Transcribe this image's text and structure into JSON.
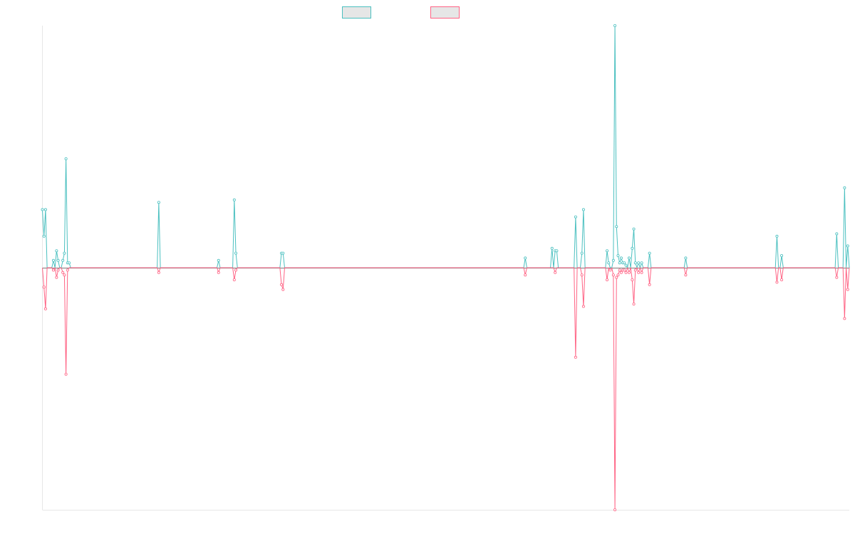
{
  "chart_data": {
    "type": "line",
    "title": "",
    "xlabel": "",
    "ylabel": "",
    "ylim": [
      -1,
      1
    ],
    "grid": false,
    "legend_position": "top-center",
    "series": [
      {
        "color": "#4bc0c0",
        "fill": "#e6e6e6",
        "values": [
          0.24,
          0.13,
          0.24,
          0,
          0,
          0,
          0,
          0.03,
          0,
          0.07,
          0.03,
          0,
          0,
          0.03,
          0.06,
          0.45,
          0.02,
          0.02,
          0,
          0,
          0,
          0,
          0,
          0,
          0,
          0,
          0,
          0,
          0,
          0,
          0,
          0,
          0,
          0,
          0,
          0,
          0,
          0,
          0,
          0,
          0,
          0,
          0,
          0,
          0,
          0,
          0,
          0,
          0,
          0,
          0,
          0,
          0,
          0,
          0,
          0,
          0,
          0,
          0,
          0,
          0,
          0,
          0,
          0,
          0,
          0,
          0,
          0,
          0,
          0,
          0,
          0,
          0,
          0,
          0.27,
          0,
          0,
          0,
          0,
          0,
          0,
          0,
          0,
          0,
          0,
          0,
          0,
          0,
          0,
          0,
          0,
          0,
          0,
          0,
          0,
          0,
          0,
          0,
          0,
          0,
          0,
          0,
          0,
          0,
          0,
          0,
          0,
          0,
          0,
          0,
          0,
          0,
          0.03,
          0,
          0,
          0,
          0,
          0,
          0,
          0,
          0,
          0,
          0.28,
          0.06,
          0,
          0,
          0,
          0,
          0,
          0,
          0,
          0,
          0,
          0,
          0,
          0,
          0,
          0,
          0,
          0,
          0,
          0,
          0,
          0,
          0,
          0,
          0,
          0,
          0,
          0,
          0,
          0,
          0.06,
          0.06,
          0,
          0,
          0,
          0,
          0,
          0,
          0,
          0,
          0,
          0,
          0,
          0,
          0,
          0,
          0,
          0,
          0,
          0,
          0,
          0,
          0,
          0,
          0,
          0,
          0,
          0,
          0,
          0,
          0,
          0,
          0,
          0,
          0,
          0,
          0,
          0,
          0,
          0,
          0,
          0,
          0,
          0,
          0,
          0,
          0,
          0,
          0,
          0,
          0,
          0,
          0,
          0,
          0,
          0,
          0,
          0,
          0,
          0,
          0,
          0,
          0,
          0,
          0,
          0,
          0,
          0,
          0,
          0,
          0,
          0,
          0,
          0,
          0,
          0,
          0,
          0,
          0,
          0,
          0,
          0,
          0,
          0,
          0,
          0,
          0,
          0,
          0,
          0,
          0,
          0,
          0,
          0,
          0,
          0,
          0,
          0,
          0,
          0,
          0,
          0,
          0,
          0,
          0,
          0,
          0,
          0,
          0,
          0,
          0,
          0,
          0,
          0,
          0,
          0,
          0,
          0,
          0,
          0,
          0,
          0,
          0,
          0,
          0,
          0,
          0,
          0,
          0,
          0,
          0,
          0,
          0,
          0,
          0,
          0,
          0,
          0,
          0,
          0,
          0,
          0,
          0,
          0,
          0,
          0,
          0,
          0,
          0,
          0,
          0,
          0,
          0,
          0,
          0,
          0.04,
          0,
          0,
          0,
          0,
          0,
          0,
          0,
          0,
          0,
          0,
          0,
          0,
          0,
          0,
          0,
          0,
          0.08,
          0,
          0.07,
          0.07,
          0,
          0,
          0,
          0,
          0,
          0,
          0,
          0,
          0,
          0,
          0,
          0.21,
          0,
          0,
          0,
          0.06,
          0.24,
          0,
          0,
          0,
          0,
          0,
          0,
          0,
          0,
          0,
          0,
          0,
          0,
          0,
          0,
          0.07,
          0.02,
          0,
          0,
          0.03,
          1.0,
          0.17,
          0.05,
          0.02,
          0.04,
          0.02,
          0.02,
          0.01,
          0,
          0.04,
          0,
          0.08,
          0.16,
          0.02,
          0,
          0.02,
          0,
          0.02,
          0,
          0,
          0,
          0,
          0.06,
          0,
          0,
          0,
          0,
          0,
          0,
          0,
          0,
          0,
          0,
          0,
          0,
          0,
          0,
          0,
          0,
          0,
          0,
          0,
          0,
          0,
          0,
          0.04,
          0,
          0,
          0,
          0,
          0,
          0,
          0,
          0,
          0,
          0,
          0,
          0,
          0,
          0,
          0,
          0,
          0,
          0,
          0,
          0,
          0,
          0,
          0,
          0,
          0,
          0,
          0,
          0,
          0,
          0,
          0,
          0,
          0,
          0,
          0,
          0,
          0,
          0,
          0,
          0,
          0,
          0,
          0,
          0,
          0,
          0,
          0,
          0,
          0,
          0,
          0,
          0,
          0,
          0,
          0,
          0,
          0,
          0.13,
          0,
          0,
          0.05,
          0,
          0,
          0,
          0,
          0,
          0,
          0,
          0,
          0,
          0,
          0,
          0,
          0,
          0,
          0,
          0,
          0,
          0,
          0,
          0,
          0,
          0,
          0,
          0,
          0,
          0,
          0,
          0,
          0,
          0,
          0,
          0,
          0,
          0,
          0.14,
          0,
          0,
          0,
          0,
          0.33,
          0,
          0.09,
          0
        ]
      },
      {
        "color": "#ff6384",
        "fill": "#e6e6e6",
        "values": [
          0,
          -0.08,
          -0.17,
          0,
          0,
          0,
          0,
          -0.01,
          0,
          -0.04,
          -0.01,
          0,
          0,
          -0.02,
          -0.03,
          -0.44,
          -0.01,
          0,
          0,
          0,
          0,
          0,
          0,
          0,
          0,
          0,
          0,
          0,
          0,
          0,
          0,
          0,
          0,
          0,
          0,
          0,
          0,
          0,
          0,
          0,
          0,
          0,
          0,
          0,
          0,
          0,
          0,
          0,
          0,
          0,
          0,
          0,
          0,
          0,
          0,
          0,
          0,
          0,
          0,
          0,
          0,
          0,
          0,
          0,
          0,
          0,
          0,
          0,
          0,
          0,
          0,
          0,
          0,
          0,
          -0.02,
          0,
          0,
          0,
          0,
          0,
          0,
          0,
          0,
          0,
          0,
          0,
          0,
          0,
          0,
          0,
          0,
          0,
          0,
          0,
          0,
          0,
          0,
          0,
          0,
          0,
          0,
          0,
          0,
          0,
          0,
          0,
          0,
          0,
          0,
          0,
          0,
          0,
          -0.02,
          0,
          0,
          0,
          0,
          0,
          0,
          0,
          0,
          0,
          -0.05,
          -0.01,
          0,
          0,
          0,
          0,
          0,
          0,
          0,
          0,
          0,
          0,
          0,
          0,
          0,
          0,
          0,
          0,
          0,
          0,
          0,
          0,
          0,
          0,
          0,
          0,
          0,
          0,
          0,
          0,
          -0.07,
          -0.09,
          0,
          0,
          0,
          0,
          0,
          0,
          0,
          0,
          0,
          0,
          0,
          0,
          0,
          0,
          0,
          0,
          0,
          0,
          0,
          0,
          0,
          0,
          0,
          0,
          0,
          0,
          0,
          0,
          0,
          0,
          0,
          0,
          0,
          0,
          0,
          0,
          0,
          0,
          0,
          0,
          0,
          0,
          0,
          0,
          0,
          0,
          0,
          0,
          0,
          0,
          0,
          0,
          0,
          0,
          0,
          0,
          0,
          0,
          0,
          0,
          0,
          0,
          0,
          0,
          0,
          0,
          0,
          0,
          0,
          0,
          0,
          0,
          0,
          0,
          0,
          0,
          0,
          0,
          0,
          0,
          0,
          0,
          0,
          0,
          0,
          0,
          0,
          0,
          0,
          0,
          0,
          0,
          0,
          0,
          0,
          0,
          0,
          0,
          0,
          0,
          0,
          0,
          0,
          0,
          0,
          0,
          0,
          0,
          0,
          0,
          0,
          0,
          0,
          0,
          0,
          0,
          0,
          0,
          0,
          0,
          0,
          0,
          0,
          0,
          0,
          0,
          0,
          0,
          0,
          0,
          0,
          0,
          0,
          0,
          0,
          0,
          0,
          0,
          0,
          0,
          0,
          0,
          0,
          0,
          0,
          0,
          0,
          0,
          0,
          0,
          0,
          0,
          0,
          -0.03,
          0,
          0,
          0,
          0,
          0,
          0,
          0,
          0,
          0,
          0,
          0,
          0,
          0,
          0,
          0,
          0,
          0,
          0,
          -0.02,
          0,
          0,
          0,
          0,
          0,
          0,
          0,
          0,
          0,
          0,
          0,
          0,
          -0.37,
          0,
          0,
          0,
          -0.03,
          -0.16,
          0,
          0,
          0,
          0,
          0,
          0,
          0,
          0,
          0,
          0,
          0,
          0,
          0,
          0,
          -0.05,
          0,
          -0.01,
          0,
          -0.03,
          -1.0,
          -0.04,
          -0.03,
          -0.01,
          -0.02,
          -0.01,
          -0.01,
          -0.02,
          0,
          -0.02,
          0,
          -0.05,
          -0.15,
          -0.01,
          0,
          -0.02,
          0,
          -0.02,
          0,
          0,
          0,
          0,
          -0.07,
          0,
          0,
          0,
          0,
          0,
          0,
          0,
          0,
          0,
          0,
          0,
          0,
          0,
          0,
          0,
          0,
          0,
          0,
          0,
          0,
          0,
          0,
          -0.03,
          0,
          0,
          0,
          0,
          0,
          0,
          0,
          0,
          0,
          0,
          0,
          0,
          0,
          0,
          0,
          0,
          0,
          0,
          0,
          0,
          0,
          0,
          0,
          0,
          0,
          0,
          0,
          0,
          0,
          0,
          0,
          0,
          0,
          0,
          0,
          0,
          0,
          0,
          0,
          0,
          0,
          0,
          0,
          0,
          0,
          0,
          0,
          0,
          0,
          0,
          0,
          0,
          0,
          0,
          0,
          0,
          0,
          -0.06,
          0,
          0,
          -0.05,
          0,
          0,
          0,
          0,
          0,
          0,
          0,
          0,
          0,
          0,
          0,
          0,
          0,
          0,
          0,
          0,
          0,
          0,
          0,
          0,
          0,
          0,
          0,
          0,
          0,
          0,
          0,
          0,
          0,
          0,
          0,
          0,
          0,
          0,
          -0.04,
          0,
          0,
          0,
          0,
          -0.21,
          0,
          -0.09,
          0
        ]
      }
    ]
  }
}
